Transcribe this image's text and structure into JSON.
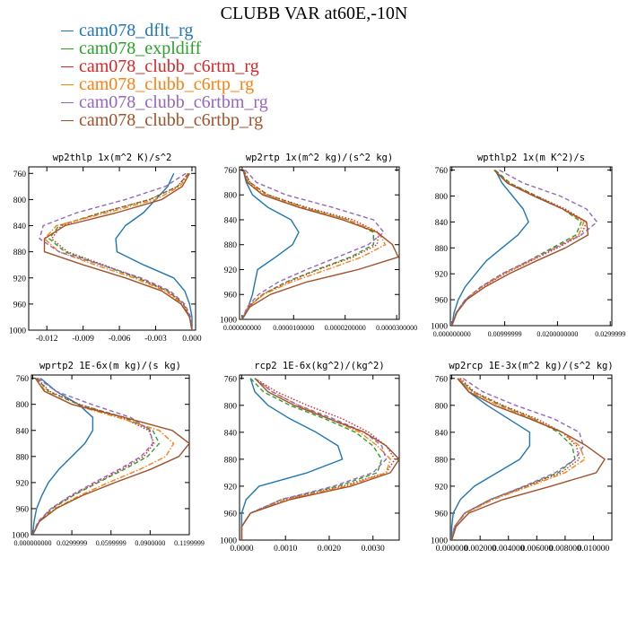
{
  "figure_title": "CLUBB VAR at60E,-10N",
  "legend": [
    {
      "label": "cam078_dflt_rg",
      "color": "#1f77b4"
    },
    {
      "label": "cam078_expldiff",
      "color": "#2ca02c"
    },
    {
      "label": "cam078_clubb_c6rtm_rg",
      "color": "#d62728"
    },
    {
      "label": "cam078_clubb_c6rtp_rg",
      "color": "#ff7f0e"
    },
    {
      "label": "cam078_clubb_c6rtbm_rg",
      "color": "#9467bd"
    },
    {
      "label": "cam078_clubb_c6rtbp_rg",
      "color": "#a0522d"
    }
  ],
  "series_styles": [
    "solid",
    "dashed",
    "dotted",
    "dashdot",
    "dashed",
    "solid"
  ],
  "chart_data": [
    {
      "type": "line",
      "title": "wp2thlp  1x(m^2 K)/s^2",
      "y": [
        760,
        780,
        800,
        820,
        840,
        860,
        880,
        900,
        920,
        940,
        960,
        980,
        1000
      ],
      "ylim": [
        1000,
        750
      ],
      "ytick_values": [
        760,
        800,
        840,
        880,
        920,
        960,
        1000
      ],
      "ytick_labels": [
        "760",
        "800",
        "840",
        "880",
        "920",
        "960",
        "1000"
      ],
      "xlim": [
        -0.0135,
        0.0003
      ],
      "xtick_values": [
        -0.012,
        -0.009,
        -0.006,
        -0.003,
        0.0
      ],
      "xtick_labels": [
        "-0.012",
        "-0.009",
        "-0.006",
        "-0.003",
        "0.000"
      ],
      "series": [
        {
          "values": [
            -0.0015,
            -0.002,
            -0.003,
            -0.004,
            -0.0055,
            -0.0063,
            -0.0062,
            -0.004,
            -0.0015,
            -0.0006,
            -0.0002,
            0.0,
            0.0
          ]
        },
        {
          "values": [
            -0.0003,
            -0.0012,
            -0.0035,
            -0.0075,
            -0.011,
            -0.0118,
            -0.0105,
            -0.0075,
            -0.0045,
            -0.002,
            -0.0007,
            -0.0002,
            0.0
          ]
        },
        {
          "values": [
            -0.0003,
            -0.0012,
            -0.0035,
            -0.0075,
            -0.0108,
            -0.0116,
            -0.0103,
            -0.0073,
            -0.0044,
            -0.002,
            -0.0007,
            -0.0002,
            0.0
          ]
        },
        {
          "values": [
            -0.0002,
            -0.001,
            -0.003,
            -0.007,
            -0.0112,
            -0.0122,
            -0.011,
            -0.008,
            -0.0048,
            -0.0022,
            -0.0008,
            -0.0002,
            0.0
          ]
        },
        {
          "values": [
            -0.0005,
            -0.0022,
            -0.0055,
            -0.0095,
            -0.0123,
            -0.0126,
            -0.011,
            -0.0075,
            -0.0042,
            -0.0018,
            -0.0006,
            -0.0001,
            0.0
          ]
        },
        {
          "values": [
            -0.0002,
            -0.0008,
            -0.0025,
            -0.0062,
            -0.0105,
            -0.0122,
            -0.0122,
            -0.009,
            -0.0055,
            -0.0025,
            -0.0009,
            -0.0002,
            0.0
          ]
        }
      ]
    },
    {
      "type": "line",
      "title": "wp2rtp  1x(m^2 kg)/(s^2 kg)",
      "y": [
        760,
        780,
        800,
        820,
        840,
        860,
        880,
        900,
        920,
        940,
        960,
        980,
        1000
      ],
      "ylim": [
        1000,
        755
      ],
      "ytick_values": [
        760,
        800,
        840,
        880,
        920,
        960,
        1000
      ],
      "ytick_labels": [
        "760",
        "800",
        "840",
        "880",
        "920",
        "960",
        "1000"
      ],
      "xlim": [
        -5e-07,
        3.05e-05
      ],
      "xtick_values": [
        0.0,
        1e-05,
        2e-05,
        3e-05
      ],
      "xtick_labels": [
        "0.000000000",
        "0.0000100000",
        "0.0000200000",
        "0.0000300000"
      ],
      "series": [
        {
          "values": [
            2e-07,
            8e-07,
            2e-06,
            5e-06,
            9.5e-06,
            1.1e-05,
            9.8e-06,
            6.5e-06,
            3e-06,
            2.5e-06,
            2e-06,
            1.2e-06,
            0.0
          ]
        },
        {
          "values": [
            3e-07,
            1.5e-06,
            5e-06,
            1.2e-05,
            2.05e-05,
            2.55e-05,
            2.55e-05,
            2.1e-05,
            1.45e-05,
            8.5e-06,
            4e-06,
            1.2e-06,
            0.0
          ]
        },
        {
          "values": [
            3e-07,
            1.5e-06,
            5e-06,
            1.25e-05,
            2.15e-05,
            2.65e-05,
            2.62e-05,
            2.15e-05,
            1.48e-05,
            8.8e-06,
            4e-06,
            1.2e-06,
            0.0
          ]
        },
        {
          "values": [
            2e-07,
            1.2e-06,
            4.5e-06,
            1.15e-05,
            2.05e-05,
            2.65e-05,
            2.78e-05,
            2.32e-05,
            1.65e-05,
            9.5e-06,
            4.2e-06,
            1.2e-06,
            0.0
          ]
        },
        {
          "values": [
            6e-07,
            2.8e-06,
            8.5e-06,
            1.75e-05,
            2.55e-05,
            2.75e-05,
            2.45e-05,
            1.85e-05,
            1.25e-05,
            7e-06,
            3.2e-06,
            1e-06,
            0.0
          ]
        },
        {
          "values": [
            2e-07,
            1e-06,
            4e-06,
            1.1e-05,
            1.95e-05,
            2.62e-05,
            2.92e-05,
            3.03e-05,
            2.25e-05,
            1.25e-05,
            5.5e-06,
            1.5e-06,
            0.0
          ]
        }
      ]
    },
    {
      "type": "line",
      "title": "wpthlp2  1x(m K^2)/s",
      "y": [
        760,
        780,
        800,
        820,
        840,
        860,
        880,
        900,
        920,
        940,
        960,
        980,
        1000
      ],
      "ylim": [
        1000,
        755
      ],
      "ytick_values": [
        760,
        800,
        840,
        880,
        920,
        960,
        1000
      ],
      "ytick_labels": [
        "760",
        "800",
        "840",
        "880",
        "920",
        "960",
        "1000"
      ],
      "xlim": [
        -0.0003,
        0.0303
      ],
      "xtick_values": [
        0.0,
        0.00999999,
        0.02,
        0.0299999
      ],
      "xtick_labels": [
        "0.000000000",
        "0.00999999",
        "0.0200000000",
        "0.0299999"
      ],
      "series": [
        {
          "values": [
            0.0082,
            0.0095,
            0.0115,
            0.0135,
            0.0145,
            0.0125,
            0.0095,
            0.0065,
            0.0045,
            0.0025,
            0.0012,
            0.0004,
            0.0
          ]
        },
        {
          "values": [
            0.0082,
            0.011,
            0.016,
            0.021,
            0.0245,
            0.0235,
            0.019,
            0.0145,
            0.0095,
            0.0055,
            0.0025,
            0.0008,
            0.0
          ]
        },
        {
          "values": [
            0.008,
            0.0108,
            0.016,
            0.0215,
            0.0255,
            0.0245,
            0.02,
            0.015,
            0.01,
            0.0058,
            0.0026,
            0.0008,
            0.0
          ]
        },
        {
          "values": [
            0.008,
            0.0106,
            0.0155,
            0.021,
            0.025,
            0.024,
            0.0195,
            0.0148,
            0.0098,
            0.0057,
            0.0026,
            0.0008,
            0.0
          ]
        },
        {
          "values": [
            0.009,
            0.0135,
            0.0205,
            0.0255,
            0.0275,
            0.0245,
            0.0195,
            0.0145,
            0.0095,
            0.0055,
            0.0025,
            0.0008,
            0.0
          ]
        },
        {
          "values": [
            0.008,
            0.0105,
            0.0155,
            0.021,
            0.0255,
            0.0258,
            0.0215,
            0.016,
            0.0108,
            0.0063,
            0.0028,
            0.0009,
            0.0
          ]
        }
      ]
    },
    {
      "type": "line",
      "title": "wprtp2  1E-6x(m kg)/(s kg)",
      "y": [
        760,
        780,
        800,
        820,
        840,
        860,
        880,
        900,
        920,
        940,
        960,
        980,
        1000
      ],
      "ylim": [
        1000,
        755
      ],
      "ytick_values": [
        760,
        800,
        840,
        880,
        920,
        960,
        1000
      ],
      "ytick_labels": [
        "760",
        "800",
        "840",
        "880",
        "920",
        "960",
        "1000"
      ],
      "xlim": [
        -0.001,
        0.12
      ],
      "xtick_values": [
        0.0,
        0.0299999,
        0.0599999,
        0.09,
        0.1199999
      ],
      "xtick_labels": [
        "0.000000000",
        "0.0299999",
        "0.0599999",
        "0.0900000",
        "0.1199999"
      ],
      "series": [
        {
          "values": [
            0.006,
            0.018,
            0.035,
            0.046,
            0.046,
            0.04,
            0.03,
            0.02,
            0.012,
            0.007,
            0.003,
            0.001,
            0.0
          ]
        },
        {
          "values": [
            0.003,
            0.012,
            0.035,
            0.07,
            0.092,
            0.097,
            0.088,
            0.07,
            0.05,
            0.031,
            0.015,
            0.005,
            0.0
          ]
        },
        {
          "values": [
            0.003,
            0.013,
            0.036,
            0.068,
            0.089,
            0.093,
            0.085,
            0.068,
            0.049,
            0.03,
            0.014,
            0.005,
            0.0
          ]
        },
        {
          "values": [
            0.002,
            0.01,
            0.03,
            0.065,
            0.097,
            0.108,
            0.102,
            0.082,
            0.058,
            0.036,
            0.017,
            0.005,
            0.0
          ]
        },
        {
          "values": [
            0.004,
            0.018,
            0.045,
            0.075,
            0.09,
            0.092,
            0.083,
            0.066,
            0.047,
            0.029,
            0.014,
            0.004,
            0.0
          ]
        },
        {
          "values": [
            0.002,
            0.009,
            0.03,
            0.07,
            0.107,
            0.12,
            0.112,
            0.09,
            0.063,
            0.038,
            0.018,
            0.005,
            0.0
          ]
        }
      ]
    },
    {
      "type": "line",
      "title": "rcp2  1E-6x(kg^2)/(kg^2)",
      "y": [
        760,
        780,
        800,
        820,
        840,
        860,
        880,
        900,
        920,
        940,
        960,
        980,
        1000
      ],
      "ylim": [
        1000,
        755
      ],
      "ytick_values": [
        760,
        800,
        840,
        880,
        920,
        960,
        1000
      ],
      "ytick_labels": [
        "760",
        "800",
        "840",
        "880",
        "920",
        "960",
        "1000"
      ],
      "xlim": [
        -5e-05,
        0.0036
      ],
      "xtick_values": [
        0.0,
        0.001,
        0.002,
        0.003
      ],
      "xtick_labels": [
        "0.0000",
        "0.0010",
        "0.0020",
        "0.0030"
      ],
      "series": [
        {
          "values": [
            0.0002,
            0.0003,
            0.0006,
            0.0011,
            0.0017,
            0.0022,
            0.0023,
            0.0015,
            0.0004,
            0.0001,
            0.0,
            0.0,
            0.0
          ]
        },
        {
          "values": [
            0.0002,
            0.0005,
            0.0011,
            0.0019,
            0.0026,
            0.003,
            0.0032,
            0.0031,
            0.0022,
            0.0009,
            0.0002,
            0.0,
            0.0
          ]
        },
        {
          "values": [
            0.0003,
            0.0008,
            0.0015,
            0.0023,
            0.0029,
            0.0033,
            0.0035,
            0.0033,
            0.0023,
            0.001,
            0.0002,
            0.0,
            0.0
          ]
        },
        {
          "values": [
            0.0003,
            0.0007,
            0.0013,
            0.002,
            0.0027,
            0.0031,
            0.0034,
            0.0033,
            0.0024,
            0.001,
            0.0002,
            0.0,
            0.0
          ]
        },
        {
          "values": [
            0.0003,
            0.0007,
            0.0013,
            0.0021,
            0.0028,
            0.0032,
            0.0033,
            0.003,
            0.0021,
            0.0009,
            0.0002,
            0.0,
            0.0
          ]
        },
        {
          "values": [
            0.0003,
            0.0006,
            0.0012,
            0.002,
            0.0028,
            0.0033,
            0.0036,
            0.0034,
            0.0025,
            0.0011,
            0.0002,
            0.0,
            0.0
          ]
        }
      ]
    },
    {
      "type": "line",
      "title": "wp2rcp  1E-3x(m^2 kg)/(s^2 kg)",
      "y": [
        760,
        780,
        800,
        820,
        840,
        860,
        880,
        900,
        920,
        940,
        960,
        980,
        1000
      ],
      "ylim": [
        1000,
        755
      ],
      "ytick_values": [
        760,
        800,
        840,
        880,
        920,
        960,
        1000
      ],
      "ytick_labels": [
        "760",
        "800",
        "840",
        "880",
        "920",
        "960",
        "1000"
      ],
      "xlim": [
        -0.0001,
        0.0113
      ],
      "xtick_values": [
        0.0,
        0.002,
        0.004,
        0.006,
        0.008,
        0.01
      ],
      "xtick_labels": [
        "0.000000",
        "0.002000",
        "0.004000",
        "0.006000",
        "0.008000",
        "0.010000"
      ],
      "series": [
        {
          "values": [
            0.0005,
            0.0012,
            0.0025,
            0.004,
            0.0055,
            0.0055,
            0.0048,
            0.0032,
            0.0016,
            0.0006,
            0.0001,
            0.0,
            0.0
          ]
        },
        {
          "values": [
            0.0005,
            0.0015,
            0.0035,
            0.0058,
            0.0075,
            0.0085,
            0.0087,
            0.0075,
            0.0052,
            0.0027,
            0.0009,
            0.0002,
            0.0
          ]
        },
        {
          "values": [
            0.0006,
            0.0016,
            0.0036,
            0.006,
            0.0078,
            0.0088,
            0.009,
            0.0077,
            0.0053,
            0.0028,
            0.0009,
            0.0002,
            0.0
          ]
        },
        {
          "values": [
            0.0005,
            0.0014,
            0.0033,
            0.0057,
            0.0078,
            0.009,
            0.0094,
            0.008,
            0.0055,
            0.0029,
            0.001,
            0.0002,
            0.0
          ]
        },
        {
          "values": [
            0.0008,
            0.0022,
            0.0045,
            0.0072,
            0.009,
            0.0093,
            0.0087,
            0.0073,
            0.0051,
            0.0027,
            0.0009,
            0.0002,
            0.0
          ]
        },
        {
          "values": [
            0.0004,
            0.0012,
            0.003,
            0.0055,
            0.0078,
            0.0095,
            0.0108,
            0.0102,
            0.007,
            0.0036,
            0.0012,
            0.0003,
            0.0
          ]
        }
      ]
    }
  ]
}
